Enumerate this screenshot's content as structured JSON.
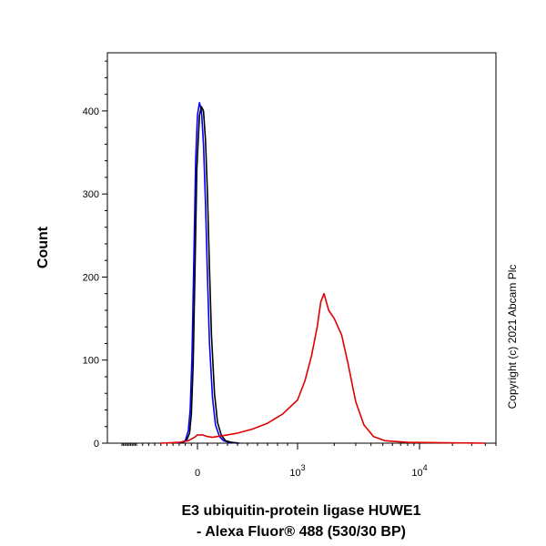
{
  "chart_data": {
    "type": "line",
    "title": "",
    "ylabel": "Count",
    "xlabel_lines": [
      "E3 ubiquitin-protein ligase HUWE1",
      "- Alexa Fluor® 488 (530/30 BP)"
    ],
    "x_scale": "biexponential",
    "ylim": [
      0,
      470
    ],
    "y_ticks": [
      0,
      100,
      200,
      300,
      400
    ],
    "x_ticks": [
      {
        "value": 0,
        "label": "0"
      },
      {
        "value": 1000,
        "label": "10",
        "sup": "3"
      },
      {
        "value": 10000,
        "label": "10",
        "sup": "4"
      }
    ],
    "grid": false,
    "legend": "none",
    "series": [
      {
        "color": "#0000ff",
        "x": [
          -300,
          -200,
          -150,
          -120,
          -90,
          -60,
          -30,
          0,
          20,
          40,
          60,
          80,
          100,
          120,
          150,
          180,
          220,
          260,
          320,
          400
        ],
        "y": [
          0,
          3,
          15,
          40,
          105,
          220,
          340,
          395,
          410,
          400,
          360,
          290,
          200,
          120,
          55,
          22,
          8,
          3,
          1,
          0
        ]
      },
      {
        "color": "#000000",
        "x": [
          -280,
          -180,
          -130,
          -100,
          -70,
          -40,
          -10,
          20,
          40,
          60,
          80,
          100,
          120,
          140,
          170,
          200,
          240,
          280,
          340,
          420
        ],
        "y": [
          0,
          3,
          12,
          35,
          95,
          210,
          330,
          395,
          405,
          400,
          365,
          300,
          210,
          130,
          60,
          25,
          9,
          3,
          1,
          0
        ]
      },
      {
        "color": "#e00000",
        "x": [
          -600,
          -300,
          -150,
          -50,
          0,
          50,
          100,
          150,
          250,
          400,
          550,
          700,
          850,
          1000,
          1150,
          1300,
          1450,
          1550,
          1650,
          1800,
          2000,
          2300,
          2600,
          3000,
          3500,
          4200,
          5200,
          8000,
          40000
        ],
        "y": [
          0,
          1,
          3,
          7,
          10,
          10,
          8,
          7,
          9,
          12,
          17,
          24,
          35,
          52,
          75,
          105,
          140,
          170,
          180,
          160,
          150,
          130,
          95,
          50,
          22,
          8,
          3,
          1,
          0
        ]
      }
    ]
  },
  "copyright": "Copyright (c) 2021 Abcam Plc"
}
